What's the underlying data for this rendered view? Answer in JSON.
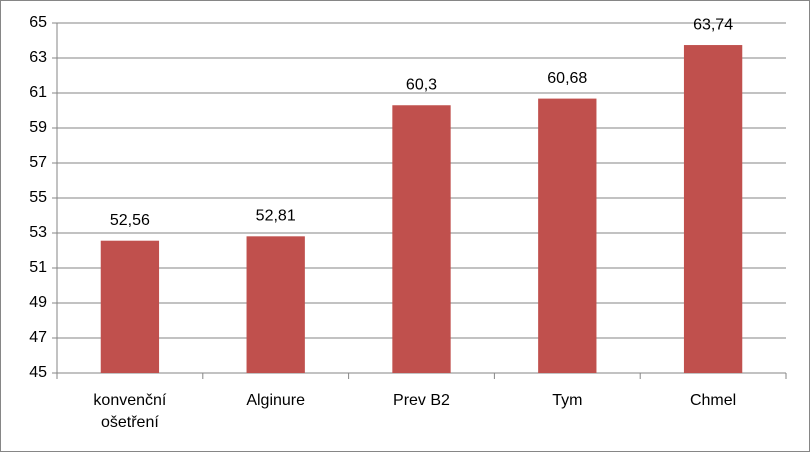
{
  "chart_data": {
    "type": "bar",
    "categories": [
      "konvenční ošetření",
      "Alginure",
      "Prev B2",
      "Tym",
      "Chmel"
    ],
    "values": [
      52.56,
      52.81,
      60.3,
      60.68,
      63.74
    ],
    "value_labels": [
      "52,56",
      "52,81",
      "60,3",
      "60,68",
      "63,74"
    ],
    "color": "#c0504d",
    "ylim": [
      45,
      65
    ],
    "yticks": [
      45,
      47,
      49,
      51,
      53,
      55,
      57,
      59,
      61,
      63,
      65
    ],
    "grid": true
  }
}
